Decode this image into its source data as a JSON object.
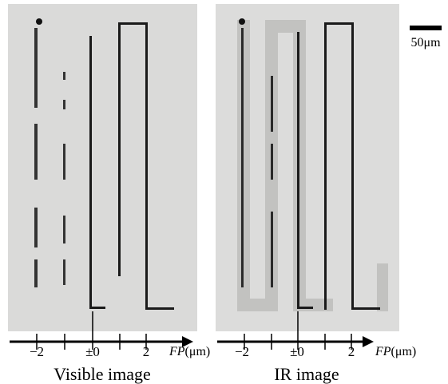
{
  "scale_bar": {
    "label": "50μm"
  },
  "panels": [
    {
      "caption": "Visible image",
      "axis": {
        "ticks": [
          "−2",
          "±0",
          "2"
        ],
        "label_var": "FP",
        "label_unit": "(μm)"
      }
    },
    {
      "caption": "IR image",
      "axis": {
        "ticks": [
          "−2",
          "±0",
          "2"
        ],
        "label_var": "FP",
        "label_unit": "(μm)"
      }
    }
  ]
}
